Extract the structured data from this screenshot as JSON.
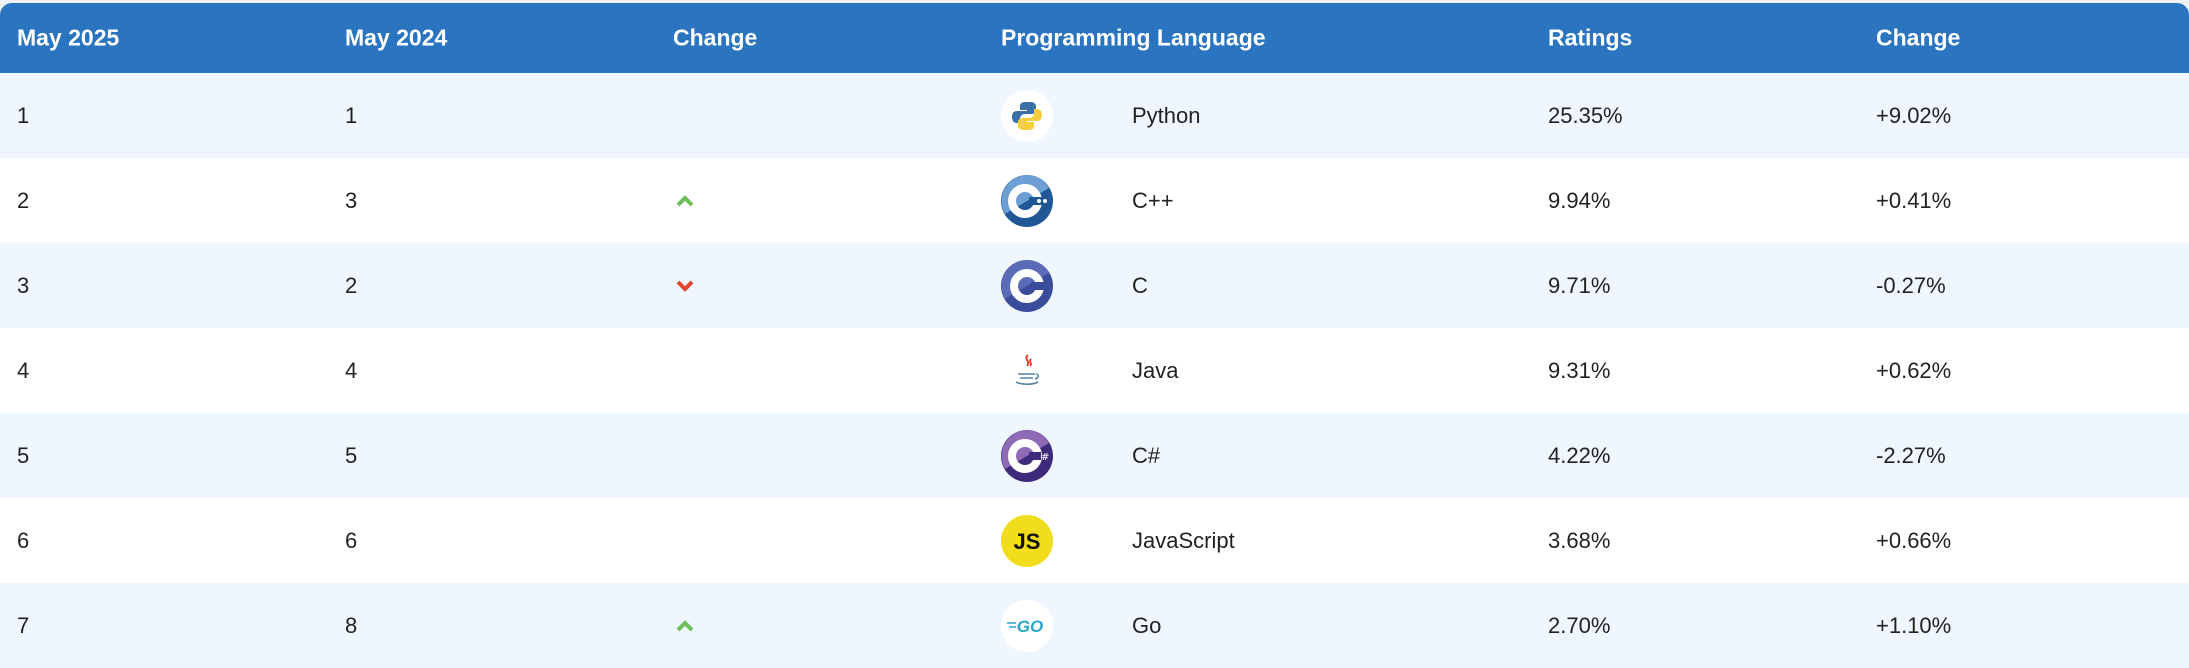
{
  "headers": [
    "May 2025",
    "May 2024",
    "Change",
    "Programming Language",
    "Ratings",
    "Change"
  ],
  "colors": {
    "header_bg": "#2a74c0",
    "up": "#6cbf5a",
    "down": "#e0452c"
  },
  "rows": [
    {
      "rank_2025": "1",
      "rank_2024": "1",
      "trend": "none",
      "icon": "python-logo-icon",
      "language": "Python",
      "rating": "25.35%",
      "change": "+9.02%"
    },
    {
      "rank_2025": "2",
      "rank_2024": "3",
      "trend": "up",
      "icon": "cpp-logo-icon",
      "language": "C++",
      "rating": "9.94%",
      "change": "+0.41%"
    },
    {
      "rank_2025": "3",
      "rank_2024": "2",
      "trend": "down",
      "icon": "c-logo-icon",
      "language": "C",
      "rating": "9.71%",
      "change": "-0.27%"
    },
    {
      "rank_2025": "4",
      "rank_2024": "4",
      "trend": "none",
      "icon": "java-logo-icon",
      "language": "Java",
      "rating": "9.31%",
      "change": "+0.62%"
    },
    {
      "rank_2025": "5",
      "rank_2024": "5",
      "trend": "none",
      "icon": "csharp-logo-icon",
      "language": "C#",
      "rating": "4.22%",
      "change": "-2.27%"
    },
    {
      "rank_2025": "6",
      "rank_2024": "6",
      "trend": "none",
      "icon": "javascript-logo-icon",
      "language": "JavaScript",
      "rating": "3.68%",
      "change": "+0.66%"
    },
    {
      "rank_2025": "7",
      "rank_2024": "8",
      "trend": "up",
      "icon": "go-logo-icon",
      "language": "Go",
      "rating": "2.70%",
      "change": "+1.10%"
    }
  ]
}
